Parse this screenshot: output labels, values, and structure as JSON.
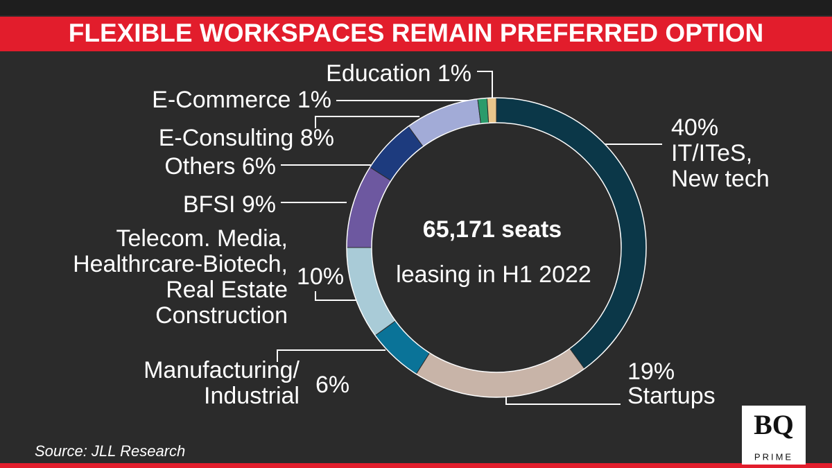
{
  "header": {
    "title": "FLEXIBLE WORKSPACES REMAIN PREFERRED OPTION"
  },
  "chart_data": {
    "type": "donut",
    "categories": [
      "IT/ITeS,\nNew tech",
      "Startups",
      "Manufacturing/\nIndustrial",
      "Telecom. Media,\nHealthrcare-Biotech,\nReal Estate\nConstruction",
      "BFSI",
      "Others",
      "E-Consulting",
      "E-Commerce",
      "Education"
    ],
    "values": [
      40,
      19,
      6,
      10,
      9,
      6,
      8,
      1,
      1
    ],
    "value_labels": [
      "40%",
      "19%",
      "6%",
      "10%",
      "9%",
      "6%",
      "8%",
      "1%",
      "1%"
    ],
    "colors": [
      "#0b3748",
      "#c8b4a8",
      "#0a7398",
      "#a9cbd7",
      "#6d58a0",
      "#1d3b7e",
      "#a2abd7",
      "#2b9b6b",
      "#e9c68c"
    ],
    "center_title": "65,171 seats",
    "center_subtitle": "leasing in H1 2022"
  },
  "footer": {
    "source": "Source: JLL Research",
    "logo": "BQ",
    "logo_sub": "PRIME"
  }
}
